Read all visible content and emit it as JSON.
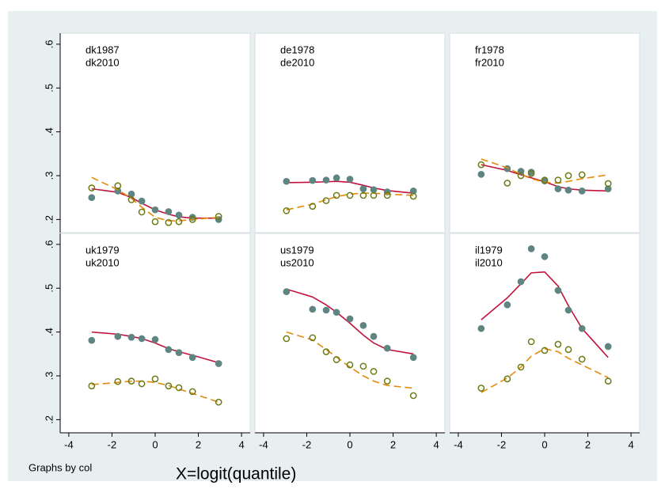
{
  "chart_data": {
    "type": "scatter",
    "x": [
      -2.94,
      -1.73,
      -1.1,
      -0.62,
      0,
      0.62,
      1.1,
      1.73,
      2.94
    ],
    "xlim": [
      -4.4,
      4.4
    ],
    "xticks": [
      -4,
      -2,
      0,
      2,
      4
    ],
    "ylim": [
      0.17,
      0.625
    ],
    "yticks": [
      {
        "value": 0.2,
        "label": ".2"
      },
      {
        "value": 0.3,
        "label": ".3"
      },
      {
        "value": 0.4,
        "label": ".4"
      },
      {
        "value": 0.5,
        "label": ".5"
      },
      {
        "value": 0.6,
        "label": ".6"
      }
    ],
    "grid": false,
    "styles": [
      {
        "label_color": "#1f4e79",
        "marker_color": "#5f8583",
        "marker_fill": true,
        "line_color": "#c0123c",
        "dash": false
      },
      {
        "label_color": "#a0282e",
        "marker_color": "#6b7a12",
        "marker_fill": false,
        "line_color": "#e48a0c",
        "dash": true
      }
    ],
    "panels": [
      {
        "series": [
          {
            "name": "dk1987",
            "values": [
              0.25,
              0.265,
              0.258,
              0.242,
              0.222,
              0.218,
              0.21,
              0.205,
              0.2
            ],
            "fit": [
              0.27,
              0.262,
              0.25,
              0.237,
              0.222,
              0.212,
              0.206,
              0.203,
              0.203
            ]
          },
          {
            "name": "dk2010",
            "values": [
              0.272,
              0.277,
              0.245,
              0.217,
              0.195,
              0.193,
              0.195,
              0.2,
              0.207
            ],
            "fit": [
              0.296,
              0.268,
              0.248,
              0.228,
              0.205,
              0.197,
              0.197,
              0.2,
              0.205
            ]
          }
        ]
      },
      {
        "series": [
          {
            "name": "de1978",
            "values": [
              0.287,
              0.289,
              0.29,
              0.295,
              0.292,
              0.27,
              0.268,
              0.263,
              0.265
            ],
            "fit": [
              0.284,
              0.285,
              0.286,
              0.287,
              0.285,
              0.278,
              0.272,
              0.266,
              0.26
            ]
          },
          {
            "name": "de2010",
            "values": [
              0.22,
              0.23,
              0.243,
              0.255,
              0.255,
              0.255,
              0.255,
              0.255,
              0.253
            ],
            "fit": [
              0.222,
              0.235,
              0.245,
              0.252,
              0.258,
              0.26,
              0.26,
              0.258,
              0.255
            ]
          }
        ]
      },
      {
        "series": [
          {
            "name": "fr1978",
            "values": [
              0.303,
              0.316,
              0.31,
              0.308,
              0.288,
              0.27,
              0.267,
              0.265,
              0.27
            ],
            "fit": [
              0.325,
              0.312,
              0.302,
              0.295,
              0.286,
              0.275,
              0.27,
              0.267,
              0.265
            ]
          },
          {
            "name": "fr2010",
            "values": [
              0.325,
              0.283,
              0.3,
              0.305,
              0.29,
              0.29,
              0.3,
              0.302,
              0.282
            ],
            "fit": [
              0.338,
              0.318,
              0.303,
              0.293,
              0.285,
              0.283,
              0.287,
              0.293,
              0.302
            ]
          }
        ]
      },
      {
        "series": [
          {
            "name": "uk1979",
            "values": [
              0.381,
              0.39,
              0.388,
              0.385,
              0.383,
              0.36,
              0.353,
              0.342,
              0.328
            ],
            "fit": [
              0.4,
              0.395,
              0.39,
              0.385,
              0.375,
              0.362,
              0.355,
              0.347,
              0.33
            ]
          },
          {
            "name": "uk2010",
            "values": [
              0.277,
              0.287,
              0.288,
              0.282,
              0.293,
              0.277,
              0.273,
              0.264,
              0.24
            ],
            "fit": [
              0.28,
              0.285,
              0.288,
              0.288,
              0.285,
              0.278,
              0.27,
              0.26,
              0.24
            ]
          }
        ]
      },
      {
        "series": [
          {
            "name": "us1979",
            "values": [
              0.492,
              0.452,
              0.45,
              0.445,
              0.43,
              0.415,
              0.39,
              0.363,
              0.342
            ],
            "fit": [
              0.498,
              0.48,
              0.462,
              0.445,
              0.42,
              0.393,
              0.375,
              0.36,
              0.35
            ]
          },
          {
            "name": "us2010",
            "values": [
              0.385,
              0.387,
              0.355,
              0.337,
              0.325,
              0.322,
              0.31,
              0.288,
              0.255
            ],
            "fit": [
              0.4,
              0.382,
              0.36,
              0.343,
              0.32,
              0.3,
              0.288,
              0.278,
              0.272
            ]
          }
        ]
      },
      {
        "series": [
          {
            "name": "il1979",
            "values": [
              0.408,
              0.462,
              0.515,
              0.59,
              0.572,
              0.495,
              0.45,
              0.408,
              0.367
            ],
            "fit": [
              0.428,
              0.478,
              0.51,
              0.535,
              0.537,
              0.505,
              0.46,
              0.408,
              0.342
            ]
          },
          {
            "name": "il2010",
            "values": [
              0.272,
              0.293,
              0.32,
              0.378,
              0.358,
              0.372,
              0.36,
              0.338,
              0.288
            ],
            "fit": [
              0.262,
              0.295,
              0.32,
              0.345,
              0.362,
              0.355,
              0.34,
              0.325,
              0.296
            ]
          }
        ]
      }
    ],
    "note": "Graphs by col",
    "xlabel": "X=logit(quantile)"
  }
}
